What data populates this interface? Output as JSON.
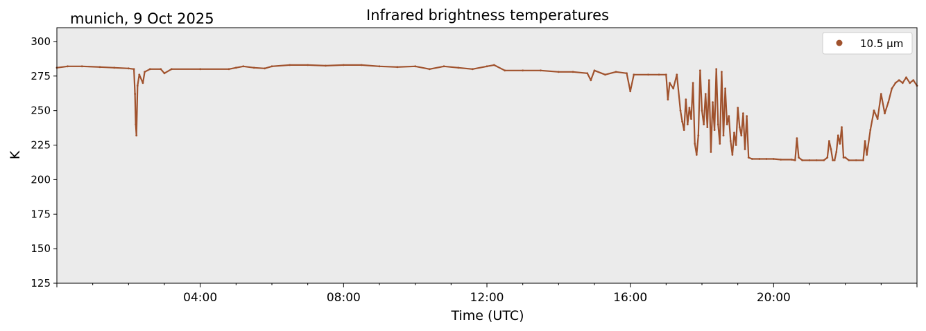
{
  "header": {
    "location_date": "munich, 9 Oct 2025"
  },
  "chart_data": {
    "type": "scatter",
    "title": "Infrared brightness temperatures",
    "xlabel": "Time (UTC)",
    "ylabel": "K",
    "xlim_hours": [
      0,
      24
    ],
    "ylim": [
      125,
      310
    ],
    "x_ticks": [
      {
        "hour": 4,
        "label": "04:00"
      },
      {
        "hour": 8,
        "label": "08:00"
      },
      {
        "hour": 12,
        "label": "12:00"
      },
      {
        "hour": 16,
        "label": "16:00"
      },
      {
        "hour": 20,
        "label": "20:00"
      }
    ],
    "y_ticks": [
      125,
      150,
      175,
      200,
      225,
      250,
      275,
      300
    ],
    "legend": "top-right",
    "background_color": "#ebebeb",
    "series": [
      {
        "name": "10.5 µm",
        "color": "#a0522d",
        "points": [
          [
            0.0,
            281
          ],
          [
            0.3,
            282
          ],
          [
            0.7,
            282
          ],
          [
            1.2,
            281.5
          ],
          [
            1.6,
            281
          ],
          [
            2.0,
            280.5
          ],
          [
            2.15,
            280
          ],
          [
            2.18,
            262
          ],
          [
            2.2,
            240
          ],
          [
            2.22,
            232
          ],
          [
            2.25,
            268
          ],
          [
            2.3,
            276
          ],
          [
            2.4,
            270
          ],
          [
            2.45,
            278
          ],
          [
            2.6,
            280
          ],
          [
            2.9,
            280
          ],
          [
            3.0,
            277
          ],
          [
            3.2,
            280
          ],
          [
            4.0,
            280
          ],
          [
            4.8,
            280
          ],
          [
            5.0,
            281
          ],
          [
            5.2,
            282
          ],
          [
            5.5,
            281
          ],
          [
            5.8,
            280.5
          ],
          [
            6.0,
            282
          ],
          [
            6.5,
            283
          ],
          [
            7.0,
            283
          ],
          [
            7.5,
            282.5
          ],
          [
            8.0,
            283
          ],
          [
            8.5,
            283
          ],
          [
            9.0,
            282
          ],
          [
            9.5,
            281.5
          ],
          [
            10.0,
            282
          ],
          [
            10.4,
            280
          ],
          [
            10.8,
            282
          ],
          [
            11.2,
            281
          ],
          [
            11.6,
            280
          ],
          [
            12.0,
            282
          ],
          [
            12.2,
            283
          ],
          [
            12.5,
            279
          ],
          [
            13.0,
            279
          ],
          [
            13.5,
            279
          ],
          [
            14.0,
            278
          ],
          [
            14.4,
            278
          ],
          [
            14.8,
            277
          ],
          [
            14.9,
            272
          ],
          [
            15.0,
            279
          ],
          [
            15.3,
            276
          ],
          [
            15.6,
            278
          ],
          [
            15.9,
            277
          ],
          [
            16.0,
            264
          ],
          [
            16.1,
            276
          ],
          [
            16.5,
            276
          ],
          [
            16.8,
            276
          ],
          [
            17.0,
            276
          ],
          [
            17.05,
            258
          ],
          [
            17.1,
            270
          ],
          [
            17.2,
            266
          ],
          [
            17.3,
            276
          ],
          [
            17.4,
            250
          ],
          [
            17.45,
            242
          ],
          [
            17.5,
            236
          ],
          [
            17.55,
            258
          ],
          [
            17.6,
            240
          ],
          [
            17.65,
            252
          ],
          [
            17.7,
            244
          ],
          [
            17.75,
            270
          ],
          [
            17.8,
            226
          ],
          [
            17.85,
            218
          ],
          [
            17.9,
            232
          ],
          [
            17.95,
            279
          ],
          [
            18.0,
            250
          ],
          [
            18.05,
            240
          ],
          [
            18.1,
            262
          ],
          [
            18.15,
            238
          ],
          [
            18.2,
            272
          ],
          [
            18.25,
            220
          ],
          [
            18.3,
            256
          ],
          [
            18.35,
            236
          ],
          [
            18.4,
            280
          ],
          [
            18.45,
            240
          ],
          [
            18.5,
            226
          ],
          [
            18.55,
            278
          ],
          [
            18.6,
            232
          ],
          [
            18.65,
            266
          ],
          [
            18.7,
            240
          ],
          [
            18.75,
            246
          ],
          [
            18.8,
            228
          ],
          [
            18.85,
            218
          ],
          [
            18.9,
            234
          ],
          [
            18.95,
            225
          ],
          [
            19.0,
            252
          ],
          [
            19.05,
            238
          ],
          [
            19.1,
            232
          ],
          [
            19.15,
            248
          ],
          [
            19.2,
            222
          ],
          [
            19.25,
            246
          ],
          [
            19.3,
            216
          ],
          [
            19.4,
            215
          ],
          [
            19.6,
            215
          ],
          [
            19.8,
            215
          ],
          [
            20.0,
            215
          ],
          [
            20.2,
            214.5
          ],
          [
            20.5,
            214.5
          ],
          [
            20.6,
            214
          ],
          [
            20.65,
            230
          ],
          [
            20.7,
            216
          ],
          [
            20.8,
            214
          ],
          [
            21.0,
            214
          ],
          [
            21.2,
            214
          ],
          [
            21.4,
            214
          ],
          [
            21.5,
            216
          ],
          [
            21.55,
            228
          ],
          [
            21.6,
            222
          ],
          [
            21.65,
            214
          ],
          [
            21.7,
            214
          ],
          [
            21.75,
            220
          ],
          [
            21.8,
            232
          ],
          [
            21.85,
            226
          ],
          [
            21.9,
            238
          ],
          [
            21.95,
            216
          ],
          [
            22.0,
            216
          ],
          [
            22.1,
            214
          ],
          [
            22.3,
            214
          ],
          [
            22.5,
            214
          ],
          [
            22.55,
            228
          ],
          [
            22.6,
            218
          ],
          [
            22.7,
            236
          ],
          [
            22.8,
            250
          ],
          [
            22.9,
            244
          ],
          [
            23.0,
            262
          ],
          [
            23.1,
            248
          ],
          [
            23.2,
            256
          ],
          [
            23.3,
            266
          ],
          [
            23.4,
            270
          ],
          [
            23.5,
            272
          ],
          [
            23.6,
            270
          ],
          [
            23.7,
            274
          ],
          [
            23.8,
            270
          ],
          [
            23.9,
            272
          ],
          [
            24.0,
            268
          ]
        ]
      }
    ]
  }
}
